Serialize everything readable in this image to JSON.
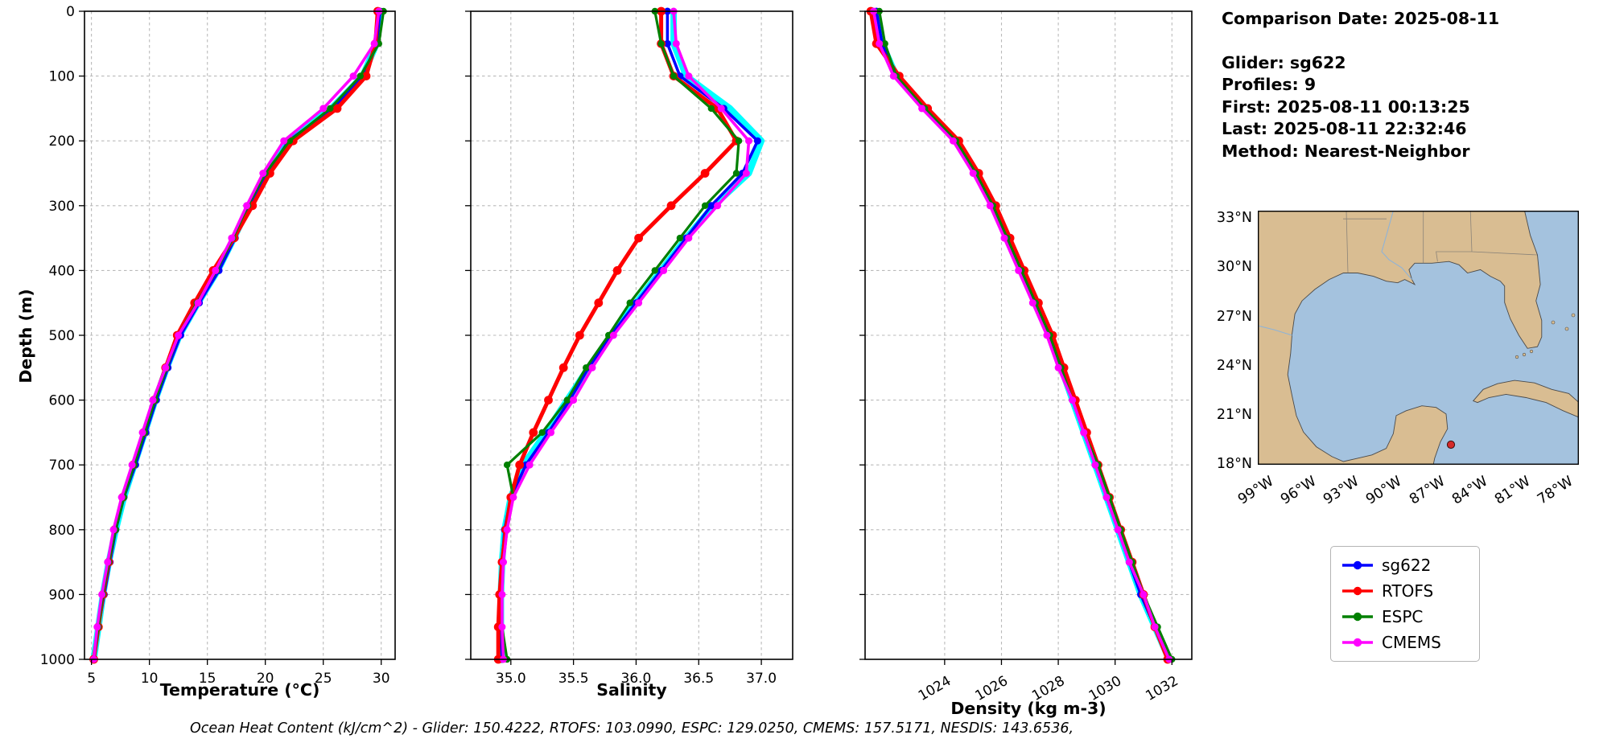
{
  "info_panel": {
    "comparison_date": "Comparison Date: 2025-08-11",
    "glider": "Glider: sg622",
    "profiles": "Profiles: 9",
    "first": "First: 2025-08-11 00:13:25",
    "last": "Last: 2025-08-11 22:32:46",
    "method": "Method: Nearest-Neighbor"
  },
  "labels": {
    "ylabel": "Depth (m)"
  },
  "footer": {
    "ohc_text": "Ocean Heat Content (kJ/cm^2) - Glider: 150.4222,  RTOFS: 103.0990,  ESPC: 129.0250,  CMEMS: 157.5171,  NESDIS: 143.6536,"
  },
  "legend": {
    "position": "below-map-right",
    "items": [
      {
        "label": "sg622",
        "color": "#0000ff"
      },
      {
        "label": "RTOFS",
        "color": "#ff0000"
      },
      {
        "label": "ESPC",
        "color": "#008000"
      },
      {
        "label": "CMEMS",
        "color": "#ff00ff"
      }
    ]
  },
  "map": {
    "region": "Gulf of Mexico",
    "lat_labels": [
      "33°N",
      "30°N",
      "27°N",
      "24°N",
      "21°N",
      "18°N"
    ],
    "lon_labels": [
      "99°W",
      "96°W",
      "93°W",
      "90°W",
      "87°W",
      "84°W",
      "81°W",
      "78°W"
    ],
    "land_color": "#d9bd92",
    "ocean_color": "#a4c2de",
    "marker_color": "#d42a2a"
  },
  "depths": [
    0,
    50,
    100,
    150,
    200,
    250,
    300,
    350,
    400,
    450,
    500,
    550,
    600,
    650,
    700,
    750,
    800,
    850,
    900,
    950,
    1000
  ],
  "depth_ticks": [
    0,
    100,
    200,
    300,
    400,
    500,
    600,
    700,
    800,
    900,
    1000
  ],
  "chart_data": [
    {
      "type": "line",
      "name": "temperature-panel",
      "xlabel": "Temperature (°C)",
      "ylabel": "Depth (m)",
      "xlim": [
        4.4,
        31.2
      ],
      "ylim": [
        1000,
        0
      ],
      "grid": "dashed",
      "xticks": [
        5,
        10,
        15,
        20,
        25,
        30
      ],
      "xtick_labels": [
        "5",
        "10",
        "15",
        "20",
        "25",
        "30"
      ],
      "rotate_xticks": false,
      "show_depth_labels": true,
      "series": [
        {
          "name": "glider-profiles",
          "color": "#00ffff",
          "width": 8,
          "markers": false,
          "marker_r": 0,
          "values": [
            29.9,
            29.6,
            28.4,
            25.7,
            21.9,
            20.1,
            18.6,
            17.3,
            15.9,
            14.2,
            12.6,
            11.5,
            10.5,
            9.6,
            8.7,
            7.8,
            7.1,
            6.5,
            6.0,
            5.6,
            5.2
          ]
        },
        {
          "name": "sg622",
          "color": "#0000ff",
          "width": 3.6,
          "markers": true,
          "marker_r": 4.5,
          "values": [
            29.9,
            29.6,
            28.4,
            25.8,
            22.0,
            20.2,
            18.7,
            17.4,
            16.0,
            14.3,
            12.7,
            11.6,
            10.6,
            9.7,
            8.8,
            7.8,
            7.1,
            6.6,
            6.1,
            5.6,
            5.2
          ]
        },
        {
          "name": "RTOFS",
          "color": "#ff0000",
          "width": 5,
          "markers": true,
          "marker_r": 5.4,
          "values": [
            29.7,
            29.5,
            28.7,
            26.2,
            22.4,
            20.4,
            18.9,
            17.3,
            15.5,
            13.9,
            12.4,
            11.4,
            10.4,
            9.5,
            8.6,
            7.7,
            7.0,
            6.5,
            6.0,
            5.6,
            5.2
          ]
        },
        {
          "name": "ESPC",
          "color": "#008000",
          "width": 3.2,
          "markers": true,
          "marker_r": 4.2,
          "values": [
            30.2,
            29.8,
            28.2,
            25.6,
            22.1,
            20.0,
            18.5,
            17.2,
            15.8,
            14.1,
            12.5,
            11.5,
            10.5,
            9.6,
            8.7,
            7.8,
            7.1,
            6.5,
            6.0,
            5.6,
            5.2
          ]
        },
        {
          "name": "CMEMS",
          "color": "#ff00ff",
          "width": 3.6,
          "markers": true,
          "marker_r": 4.5,
          "values": [
            29.8,
            29.4,
            27.6,
            25.0,
            21.6,
            19.8,
            18.4,
            17.1,
            15.7,
            14.2,
            12.5,
            11.4,
            10.3,
            9.4,
            8.5,
            7.6,
            6.9,
            6.4,
            5.9,
            5.5,
            5.2
          ]
        }
      ]
    },
    {
      "type": "line",
      "name": "salinity-panel",
      "xlabel": "Salinity",
      "ylabel": "Depth (m)",
      "xlim": [
        34.68,
        37.25
      ],
      "ylim": [
        1000,
        0
      ],
      "grid": "dashed",
      "xticks": [
        35.0,
        35.5,
        36.0,
        36.5,
        37.0
      ],
      "xtick_labels": [
        "35.0",
        "35.5",
        "36.0",
        "36.5",
        "37.0"
      ],
      "rotate_xticks": false,
      "show_depth_labels": false,
      "series": [
        {
          "name": "glider-profiles",
          "color": "#00ffff",
          "width": 8,
          "markers": false,
          "marker_r": 0,
          "values": [
            36.3,
            36.3,
            36.4,
            36.75,
            37.0,
            36.9,
            36.62,
            36.4,
            36.2,
            36.0,
            35.8,
            35.62,
            35.45,
            35.28,
            35.1,
            35.0,
            34.95,
            34.93,
            34.92,
            34.92,
            34.93
          ]
        },
        {
          "name": "sg622",
          "color": "#0000ff",
          "width": 3.6,
          "markers": true,
          "marker_r": 4.5,
          "values": [
            36.25,
            36.25,
            36.35,
            36.7,
            36.97,
            36.85,
            36.6,
            36.4,
            36.2,
            36.0,
            35.8,
            35.62,
            35.47,
            35.3,
            35.12,
            35.0,
            34.95,
            34.93,
            34.92,
            34.92,
            34.93
          ]
        },
        {
          "name": "RTOFS",
          "color": "#ff0000",
          "width": 5,
          "markers": true,
          "marker_r": 5.4,
          "values": [
            36.2,
            36.2,
            36.3,
            36.65,
            36.8,
            36.55,
            36.28,
            36.02,
            35.85,
            35.7,
            35.55,
            35.42,
            35.3,
            35.18,
            35.07,
            35.0,
            34.96,
            34.93,
            34.91,
            34.9,
            34.9
          ]
        },
        {
          "name": "ESPC",
          "color": "#008000",
          "width": 3.2,
          "markers": true,
          "marker_r": 4.2,
          "values": [
            36.15,
            36.2,
            36.3,
            36.6,
            36.82,
            36.8,
            36.55,
            36.35,
            36.15,
            35.95,
            35.78,
            35.6,
            35.45,
            35.25,
            34.97,
            35.02,
            34.97,
            34.94,
            34.93,
            34.93,
            34.97
          ]
        },
        {
          "name": "CMEMS",
          "color": "#ff00ff",
          "width": 3.6,
          "markers": true,
          "marker_r": 4.5,
          "values": [
            36.3,
            36.32,
            36.42,
            36.68,
            36.9,
            36.88,
            36.65,
            36.42,
            36.22,
            36.02,
            35.82,
            35.65,
            35.5,
            35.32,
            35.15,
            35.02,
            34.97,
            34.94,
            34.93,
            34.93,
            34.94
          ]
        }
      ]
    },
    {
      "type": "line",
      "name": "density-panel",
      "xlabel": "Density (kg m-3)",
      "ylabel": "Depth (m)",
      "xlim": [
        1021.2,
        1032.7
      ],
      "ylim": [
        1000,
        0
      ],
      "grid": "dashed",
      "xticks": [
        1024,
        1026,
        1028,
        1030,
        1032
      ],
      "xtick_labels": [
        "1024",
        "1026",
        "1028",
        "1030",
        "1032"
      ],
      "rotate_xticks": true,
      "show_depth_labels": false,
      "series": [
        {
          "name": "glider-profiles",
          "color": "#00ffff",
          "width": 8,
          "markers": false,
          "marker_r": 0,
          "values": [
            1021.6,
            1021.8,
            1022.3,
            1023.3,
            1024.4,
            1025.1,
            1025.7,
            1026.2,
            1026.7,
            1027.2,
            1027.7,
            1028.1,
            1028.5,
            1028.9,
            1029.3,
            1029.7,
            1030.1,
            1030.5,
            1030.9,
            1031.4,
            1031.9
          ]
        },
        {
          "name": "sg622",
          "color": "#0000ff",
          "width": 3.6,
          "markers": true,
          "marker_r": 4.5,
          "values": [
            1021.6,
            1021.8,
            1022.3,
            1023.3,
            1024.4,
            1025.1,
            1025.7,
            1026.2,
            1026.7,
            1027.2,
            1027.7,
            1028.1,
            1028.5,
            1028.9,
            1029.3,
            1029.7,
            1030.1,
            1030.5,
            1030.9,
            1031.4,
            1031.9
          ]
        },
        {
          "name": "RTOFS",
          "color": "#ff0000",
          "width": 5,
          "markers": true,
          "marker_r": 5.4,
          "values": [
            1021.4,
            1021.6,
            1022.4,
            1023.4,
            1024.5,
            1025.2,
            1025.8,
            1026.3,
            1026.8,
            1027.3,
            1027.8,
            1028.2,
            1028.6,
            1029.0,
            1029.4,
            1029.8,
            1030.2,
            1030.6,
            1031.0,
            1031.4,
            1031.85
          ]
        },
        {
          "name": "ESPC",
          "color": "#008000",
          "width": 3.2,
          "markers": true,
          "marker_r": 4.2,
          "values": [
            1021.7,
            1021.9,
            1022.3,
            1023.3,
            1024.4,
            1025.1,
            1025.7,
            1026.2,
            1026.7,
            1027.2,
            1027.7,
            1028.1,
            1028.5,
            1028.9,
            1029.4,
            1029.8,
            1030.2,
            1030.6,
            1031.0,
            1031.5,
            1032.0
          ]
        },
        {
          "name": "CMEMS",
          "color": "#ff00ff",
          "width": 3.6,
          "markers": true,
          "marker_r": 4.5,
          "values": [
            1021.5,
            1021.7,
            1022.2,
            1023.2,
            1024.3,
            1025.0,
            1025.6,
            1026.1,
            1026.6,
            1027.1,
            1027.6,
            1028.0,
            1028.5,
            1028.9,
            1029.3,
            1029.7,
            1030.1,
            1030.5,
            1031.0,
            1031.4,
            1031.9
          ]
        }
      ]
    }
  ]
}
